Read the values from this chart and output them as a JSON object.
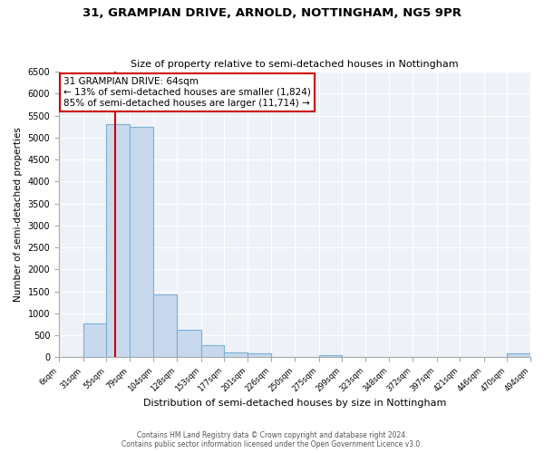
{
  "title_line1": "31, GRAMPIAN DRIVE, ARNOLD, NOTTINGHAM, NG5 9PR",
  "title_line2": "Size of property relative to semi-detached houses in Nottingham",
  "xlabel": "Distribution of semi-detached houses by size in Nottingham",
  "ylabel": "Number of semi-detached properties",
  "bin_edges": [
    6,
    31,
    55,
    79,
    104,
    128,
    153,
    177,
    201,
    226,
    250,
    275,
    299,
    323,
    348,
    372,
    397,
    421,
    446,
    470,
    494
  ],
  "bar_heights": [
    0,
    780,
    5300,
    5250,
    1430,
    620,
    270,
    120,
    100,
    0,
    0,
    50,
    0,
    0,
    0,
    0,
    0,
    0,
    0,
    100
  ],
  "bar_color": "#c8d9ee",
  "bar_edge_color": "#7bafd4",
  "property_size": 64,
  "red_line_color": "#cc0000",
  "annotation_title": "31 GRAMPIAN DRIVE: 64sqm",
  "annotation_line1": "← 13% of semi-detached houses are smaller (1,824)",
  "annotation_line2": "85% of semi-detached houses are larger (11,714) →",
  "annotation_box_color": "#ffffff",
  "annotation_box_edge": "#cc0000",
  "ylim": [
    0,
    6500
  ],
  "yticks": [
    0,
    500,
    1000,
    1500,
    2000,
    2500,
    3000,
    3500,
    4000,
    4500,
    5000,
    5500,
    6000,
    6500
  ],
  "footer_line1": "Contains HM Land Registry data © Crown copyright and database right 2024.",
  "footer_line2": "Contains public sector information licensed under the Open Government Licence v3.0.",
  "bg_color": "#ffffff",
  "plot_bg_color": "#eef2f8"
}
